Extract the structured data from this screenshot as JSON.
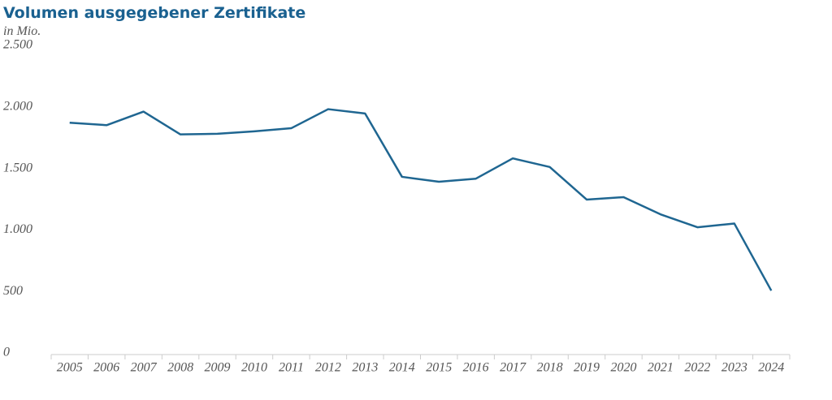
{
  "chart_data": {
    "type": "line",
    "title": "Volumen ausgegebener Zertifikate",
    "subtitle": "in Mio.",
    "categories": [
      "2005",
      "2006",
      "2007",
      "2008",
      "2009",
      "2010",
      "2011",
      "2012",
      "2013",
      "2014",
      "2015",
      "2016",
      "2017",
      "2018",
      "2019",
      "2020",
      "2021",
      "2022",
      "2023",
      "2024"
    ],
    "series": [
      {
        "name": "Volumen",
        "color": "#1f6691",
        "values": [
          1885,
          1865,
          1975,
          1790,
          1795,
          1815,
          1840,
          1995,
          1960,
          1445,
          1405,
          1430,
          1595,
          1525,
          1260,
          1280,
          1140,
          1035,
          1065,
          520
        ]
      }
    ],
    "ylim": [
      0,
      2500
    ],
    "yticks": [
      0,
      500,
      {
        "value": 1000,
        "label": "1.000"
      },
      {
        "value": 1500,
        "label": "1.500"
      },
      {
        "value": 2000,
        "label": "2.000"
      },
      {
        "value": 2500,
        "label": "2.500"
      }
    ],
    "grid": false
  }
}
